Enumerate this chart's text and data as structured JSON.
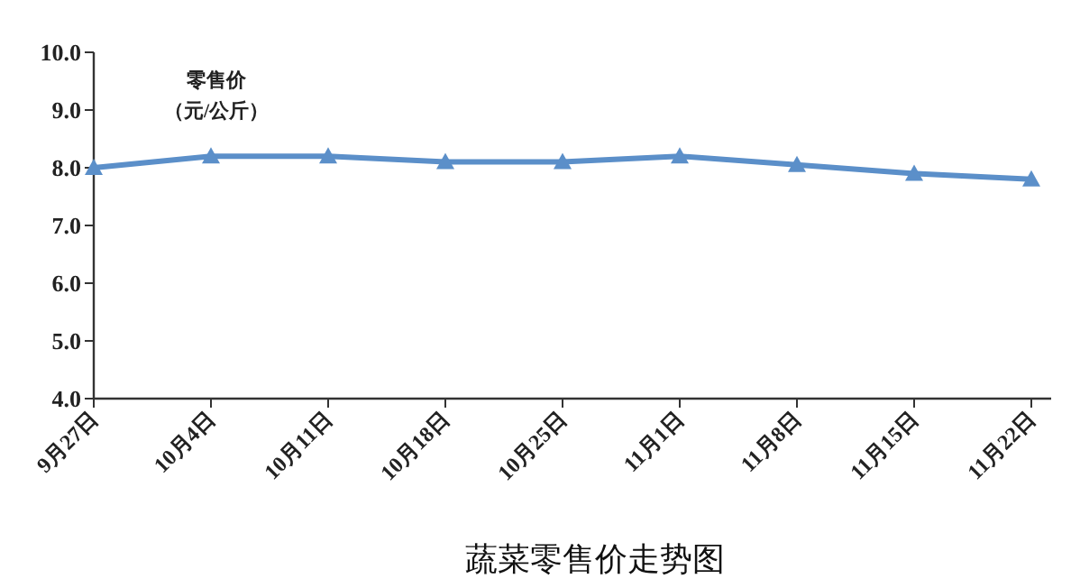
{
  "chart_data": {
    "type": "line",
    "title": "蔬菜零售价走势图",
    "ylabel": "零售价（元/公斤）",
    "categories": [
      "9月27日",
      "10月4日",
      "10月11日",
      "10月18日",
      "10月25日",
      "11月1日",
      "11月8日",
      "11月15日",
      "11月22日"
    ],
    "series": [
      {
        "color": "#5b8fc9",
        "values": [
          8.0,
          8.2,
          8.2,
          8.1,
          8.1,
          8.2,
          8.05,
          7.9,
          7.8
        ]
      }
    ],
    "ylim": [
      4,
      10
    ],
    "yticks": [
      {
        "value": 4,
        "label": "4.0"
      },
      {
        "value": 5,
        "label": "5.0"
      },
      {
        "value": 6,
        "label": "6.0"
      },
      {
        "value": 7,
        "label": "7.0"
      },
      {
        "value": 8,
        "label": "8.0"
      },
      {
        "value": 9,
        "label": "9.0"
      },
      {
        "value": 10,
        "label": "10.0"
      }
    ],
    "marker": "triangle",
    "line_style": "solid",
    "grid": false
  }
}
